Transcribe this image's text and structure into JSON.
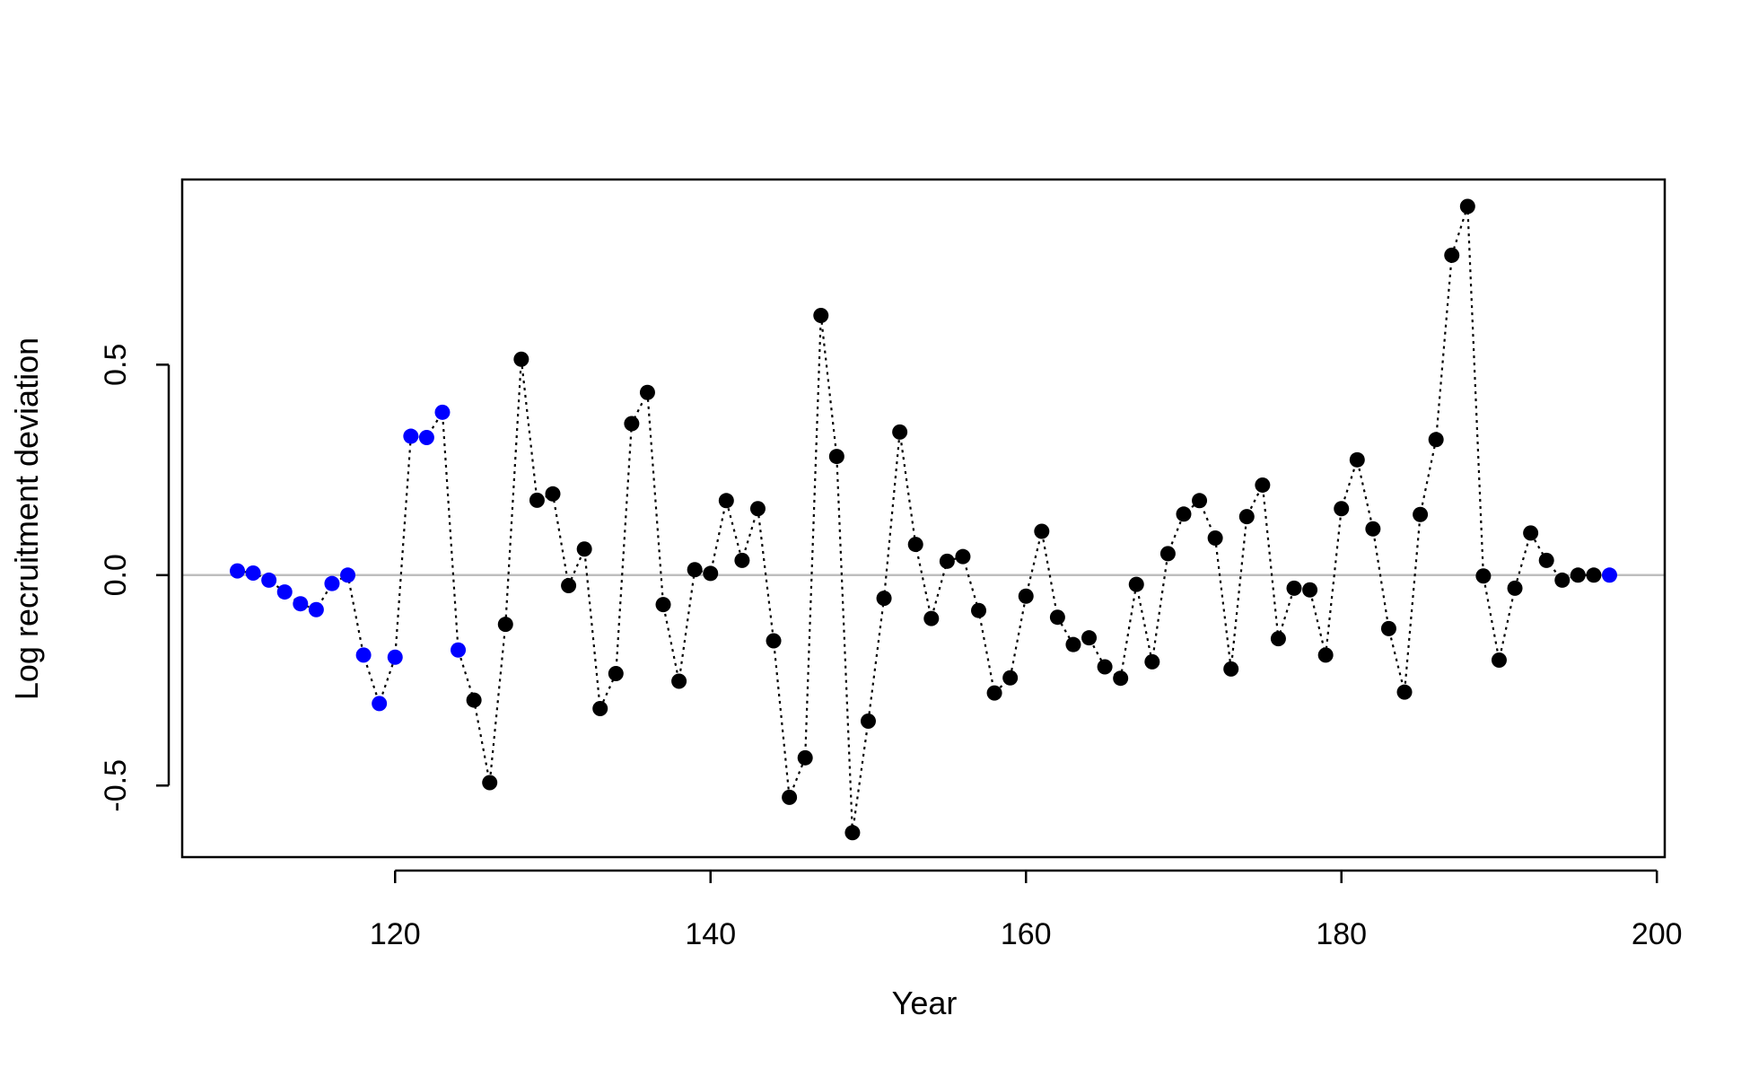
{
  "chart_data": {
    "type": "scatter",
    "title": "",
    "xlabel": "Year",
    "ylabel": "Log recruitment deviation",
    "xlim": [
      106.5,
      200.5
    ],
    "ylim": [
      -0.67,
      0.94
    ],
    "xticks": [
      120,
      140,
      160,
      180,
      200
    ],
    "xtick_labels": [
      "120",
      "140",
      "160",
      "180",
      "200"
    ],
    "yticks": [
      -0.5,
      0.0,
      0.5
    ],
    "ytick_labels": [
      "-0.5",
      "0.0",
      "0.5"
    ],
    "reference_line": {
      "y": 0,
      "color": "#bebebe"
    },
    "grid": false,
    "line_style": "dotted",
    "series": [
      {
        "color": "#0000ff",
        "x": [
          110,
          111,
          112,
          113,
          114,
          115,
          116,
          117,
          118,
          119,
          120,
          121,
          122,
          123,
          124
        ],
        "y": [
          0.01,
          0.005,
          -0.012,
          -0.04,
          -0.068,
          -0.082,
          -0.02,
          0.0,
          -0.19,
          -0.305,
          -0.195,
          0.33,
          0.327,
          0.387,
          -0.178
        ]
      },
      {
        "color": "#000000",
        "x": [
          125,
          126,
          127,
          128,
          129,
          130,
          131,
          132,
          133,
          134,
          135,
          136,
          137,
          138,
          139,
          140,
          141,
          142,
          143,
          144,
          145,
          146,
          147,
          148,
          149,
          150,
          151,
          152,
          153,
          154,
          155,
          156,
          157,
          158,
          159,
          160,
          161,
          162,
          163,
          164,
          165,
          166,
          167,
          168,
          169,
          170,
          171,
          172,
          173,
          174,
          175,
          176,
          177,
          178,
          179,
          180,
          181,
          182,
          183,
          184,
          185,
          186,
          187,
          188,
          189,
          190,
          191,
          192,
          193,
          194,
          195,
          196
        ],
        "y": [
          -0.297,
          -0.493,
          -0.117,
          0.513,
          0.178,
          0.193,
          -0.025,
          0.062,
          -0.317,
          -0.234,
          0.36,
          0.434,
          -0.07,
          -0.252,
          0.013,
          0.004,
          0.177,
          0.035,
          0.158,
          -0.156,
          -0.528,
          -0.434,
          0.617,
          0.282,
          -0.612,
          -0.347,
          -0.055,
          0.34,
          0.073,
          -0.103,
          0.033,
          0.044,
          -0.084,
          -0.28,
          -0.244,
          -0.05,
          0.104,
          -0.1,
          -0.165,
          -0.149,
          -0.218,
          -0.245,
          -0.022,
          -0.206,
          0.051,
          0.145,
          0.177,
          0.088,
          -0.223,
          0.139,
          0.214,
          -0.151,
          -0.031,
          -0.035,
          -0.19,
          0.158,
          0.274,
          0.11,
          -0.127,
          -0.278,
          0.144,
          0.322,
          0.76,
          0.876,
          -0.002,
          -0.202,
          -0.031,
          0.1,
          0.035,
          -0.012,
          0.0,
          0.0
        ]
      },
      {
        "color": "#0000ff",
        "x": [
          197
        ],
        "y": [
          0.0
        ]
      }
    ]
  }
}
